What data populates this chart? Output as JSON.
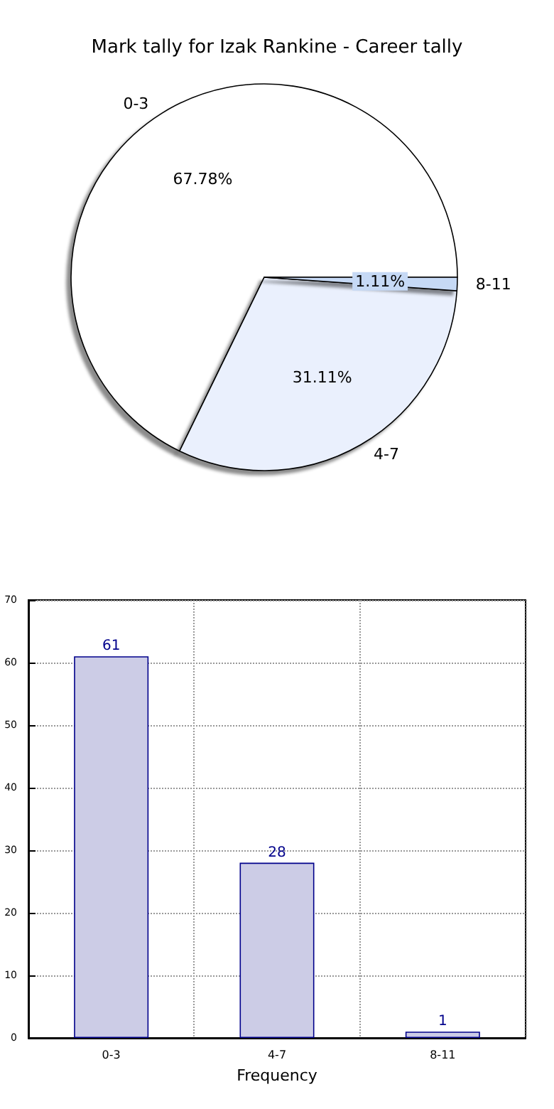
{
  "chart_data": [
    {
      "type": "pie",
      "title": "Mark tally for Izak Rankine - Career tally",
      "categories": [
        "0-3",
        "4-7",
        "8-11"
      ],
      "values": [
        67.78,
        31.11,
        1.11
      ],
      "value_labels": [
        "67.78%",
        "31.11%",
        "1.11%"
      ],
      "colors": [
        "#ffffff",
        "#eaf0fd",
        "#c6d9f5"
      ]
    },
    {
      "type": "bar",
      "xlabel": "Frequency",
      "categories": [
        "0-3",
        "4-7",
        "8-11"
      ],
      "values": [
        61,
        28,
        1
      ],
      "color": "#cccce6",
      "ylim": [
        0,
        70
      ],
      "yticks": [
        0,
        10,
        20,
        30,
        40,
        50,
        60,
        70
      ],
      "grid": true,
      "data_labels": true
    }
  ]
}
